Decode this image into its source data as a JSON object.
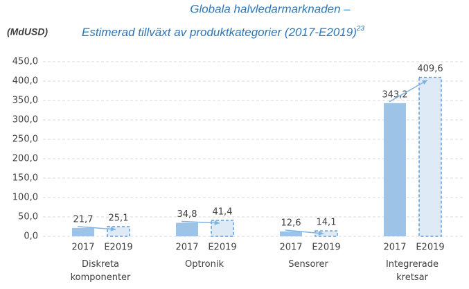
{
  "chart_data": {
    "type": "bar",
    "title": "Globala halvledarmarknaden –",
    "subtitle": "Estimerad tillväxt av produktkategorier (2017-E2019)",
    "subtitle_note": "23",
    "y_label": "(MdUSD)",
    "categories": [
      "Diskreta komponenter",
      "Optronik",
      "Sensorer",
      "Integrerade kretsar"
    ],
    "series": [
      {
        "name": "2017",
        "color": "#9dc3e6",
        "border": "solid",
        "values": [
          21.7,
          34.8,
          12.6,
          343.2
        ],
        "value_labels": [
          "21,7",
          "34,8",
          "12,6",
          "343,2"
        ]
      },
      {
        "name": "E2019",
        "color": "#deebf7",
        "border": "dashed",
        "values": [
          25.1,
          41.4,
          14.1,
          409.6
        ],
        "value_labels": [
          "25,1",
          "41,4",
          "14,1",
          "409,6"
        ]
      }
    ],
    "ylim": [
      0,
      450
    ],
    "yticks": [
      {
        "value": 0,
        "label": "0,0"
      },
      {
        "value": 50,
        "label": "50,0"
      },
      {
        "value": 100,
        "label": "100,0"
      },
      {
        "value": 150,
        "label": "150,0"
      },
      {
        "value": 200,
        "label": "200,0"
      },
      {
        "value": 250,
        "label": "250,0"
      },
      {
        "value": 300,
        "label": "300,0"
      },
      {
        "value": 350,
        "label": "350,0"
      },
      {
        "value": 400,
        "label": "400,0"
      },
      {
        "value": 450,
        "label": "450,0"
      }
    ],
    "grid": true
  }
}
